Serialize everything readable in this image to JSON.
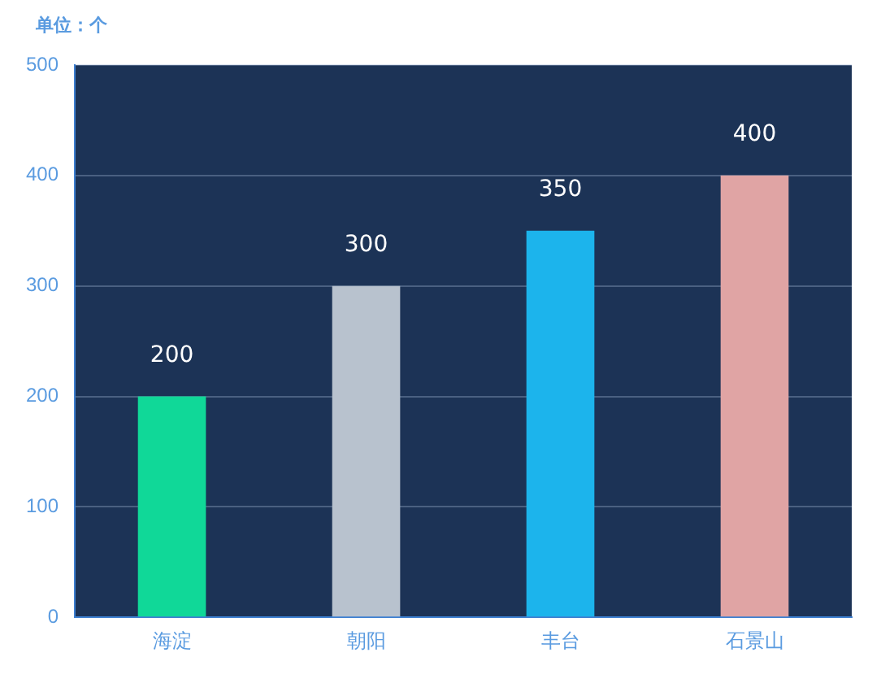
{
  "chart_data": {
    "type": "bar",
    "ylabel": "单位：个",
    "categories": [
      "海淀",
      "朝阳",
      "丰台",
      "石景山"
    ],
    "values": [
      200,
      300,
      350,
      400
    ],
    "colors": [
      "#10d898",
      "#b8c2ce",
      "#1cb4ec",
      "#e0a4a4"
    ],
    "ylim": [
      0,
      500
    ],
    "yticks": [
      0,
      100,
      200,
      300,
      400,
      500
    ],
    "grid": "y",
    "data_labels": true,
    "legend": false
  }
}
